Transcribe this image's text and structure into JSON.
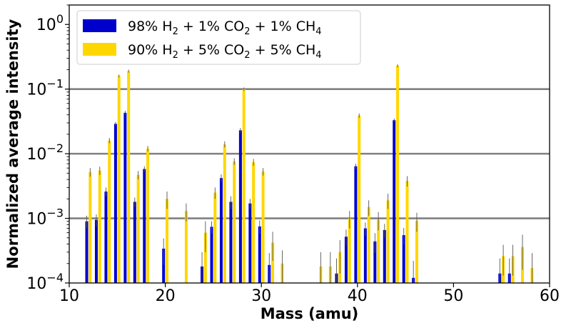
{
  "chart_data": {
    "type": "bar",
    "xlabel": "Mass (amu)",
    "ylabel": "Normalized average intensity",
    "xlim": [
      10,
      60
    ],
    "ylim": [
      0.0001,
      2
    ],
    "yscale": "log",
    "x_ticks": [
      10,
      20,
      30,
      40,
      50,
      60
    ],
    "y_ticks": [
      {
        "value": 1,
        "base": "10",
        "exp": "0"
      },
      {
        "value": 0.1,
        "base": "10",
        "exp": "−1"
      },
      {
        "value": 0.01,
        "base": "10",
        "exp": "−2"
      },
      {
        "value": 0.001,
        "base": "10",
        "exp": "−3"
      },
      {
        "value": 0.0001,
        "base": "10",
        "exp": "−4"
      }
    ],
    "reference_lines": [
      0.1,
      0.01,
      0.001
    ],
    "legend_position": "top-left",
    "series": [
      {
        "name_parts": [
          "98% H",
          "2",
          " + 1% CO",
          "2",
          " + 1% CH",
          "4"
        ],
        "color": "#0000cc",
        "points": [
          {
            "x": 12,
            "y": 0.0009,
            "err": 0.0002
          },
          {
            "x": 13,
            "y": 0.00095,
            "err": 0.0002
          },
          {
            "x": 14,
            "y": 0.0026,
            "err": 0.0004
          },
          {
            "x": 15,
            "y": 0.029,
            "err": 0.002
          },
          {
            "x": 16,
            "y": 0.043,
            "err": 0.003
          },
          {
            "x": 17,
            "y": 0.0018,
            "err": 0.0003
          },
          {
            "x": 18,
            "y": 0.0058,
            "err": 0.0006
          },
          {
            "x": 20,
            "y": 0.00034,
            "err": 0.00015
          },
          {
            "x": 24,
            "y": 0.00018,
            "err": 0.00012
          },
          {
            "x": 25,
            "y": 0.00074,
            "err": 0.00016
          },
          {
            "x": 26,
            "y": 0.0042,
            "err": 0.0006
          },
          {
            "x": 27,
            "y": 0.0018,
            "err": 0.0004
          },
          {
            "x": 28,
            "y": 0.023,
            "err": 0.002
          },
          {
            "x": 29,
            "y": 0.0017,
            "err": 0.0003
          },
          {
            "x": 30,
            "y": 0.00075,
            "err": 0.00018
          },
          {
            "x": 31,
            "y": 0.00019,
            "err": 0.0001
          },
          {
            "x": 38,
            "y": 0.00014,
            "err": 0.0001
          },
          {
            "x": 39,
            "y": 0.00052,
            "err": 0.00015
          },
          {
            "x": 40,
            "y": 0.0064,
            "err": 0.0006
          },
          {
            "x": 41,
            "y": 0.0007,
            "err": 0.00016
          },
          {
            "x": 42,
            "y": 0.00044,
            "err": 0.00015
          },
          {
            "x": 43,
            "y": 0.00066,
            "err": 0.00016
          },
          {
            "x": 44,
            "y": 0.033,
            "err": 0.002
          },
          {
            "x": 45,
            "y": 0.00055,
            "err": 0.00016
          },
          {
            "x": 46,
            "y": 0.00012,
            "err": 0.0001
          },
          {
            "x": 55,
            "y": 0.00014,
            "err": 0.0001
          },
          {
            "x": 56,
            "y": 0.00014,
            "err": 0.0001
          }
        ]
      },
      {
        "name_parts": [
          "90% H",
          "2",
          " + 5% CO",
          "2",
          " + 5% CH",
          "4"
        ],
        "color": "#ffd700",
        "points": [
          {
            "x": 12,
            "y": 0.0052,
            "err": 0.0008
          },
          {
            "x": 13,
            "y": 0.0055,
            "err": 0.0008
          },
          {
            "x": 14,
            "y": 0.016,
            "err": 0.0015
          },
          {
            "x": 15,
            "y": 0.16,
            "err": 0.008
          },
          {
            "x": 16,
            "y": 0.19,
            "err": 0.01
          },
          {
            "x": 17,
            "y": 0.0047,
            "err": 0.0007
          },
          {
            "x": 18,
            "y": 0.012,
            "err": 0.0012
          },
          {
            "x": 20,
            "y": 0.002,
            "err": 0.0006
          },
          {
            "x": 22,
            "y": 0.0013,
            "err": 0.0004
          },
          {
            "x": 24,
            "y": 0.0006,
            "err": 0.0003
          },
          {
            "x": 25,
            "y": 0.0025,
            "err": 0.0005
          },
          {
            "x": 26,
            "y": 0.014,
            "err": 0.0015
          },
          {
            "x": 27,
            "y": 0.0076,
            "err": 0.0009
          },
          {
            "x": 28,
            "y": 0.1,
            "err": 0.006
          },
          {
            "x": 29,
            "y": 0.0074,
            "err": 0.0009
          },
          {
            "x": 30,
            "y": 0.0053,
            "err": 0.0007
          },
          {
            "x": 31,
            "y": 0.00042,
            "err": 0.0002
          },
          {
            "x": 32,
            "y": 0.0002,
            "err": 0.00012
          },
          {
            "x": 36,
            "y": 0.00018,
            "err": 0.00012
          },
          {
            "x": 37,
            "y": 0.00018,
            "err": 0.00012
          },
          {
            "x": 38,
            "y": 0.0003,
            "err": 0.00016
          },
          {
            "x": 39,
            "y": 0.001,
            "err": 0.0003
          },
          {
            "x": 40,
            "y": 0.039,
            "err": 0.003
          },
          {
            "x": 41,
            "y": 0.0015,
            "err": 0.0004
          },
          {
            "x": 42,
            "y": 0.00095,
            "err": 0.0003
          },
          {
            "x": 43,
            "y": 0.0019,
            "err": 0.0005
          },
          {
            "x": 44,
            "y": 0.23,
            "err": 0.012
          },
          {
            "x": 45,
            "y": 0.0038,
            "err": 0.0007
          },
          {
            "x": 46,
            "y": 0.00092,
            "err": 0.0003
          },
          {
            "x": 55,
            "y": 0.00026,
            "err": 0.00013
          },
          {
            "x": 56,
            "y": 0.00026,
            "err": 0.00013
          },
          {
            "x": 57,
            "y": 0.00036,
            "err": 0.0002
          },
          {
            "x": 58,
            "y": 0.00017,
            "err": 0.00012
          }
        ]
      }
    ]
  }
}
